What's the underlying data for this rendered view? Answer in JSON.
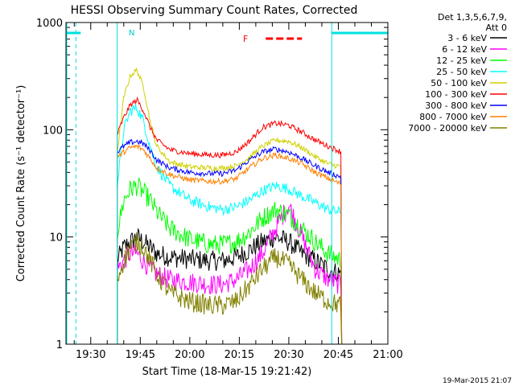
{
  "chart_data": {
    "type": "line",
    "title": "HESSI Observing Summary Count Rates, Corrected",
    "xlabel": "Start Time (18-Mar-15 19:21:42)",
    "ylabel": "Corrected Count Rate (s⁻¹ detector⁻¹)",
    "y_scale": "log",
    "ylim": [
      1,
      1000
    ],
    "xlim_minutes_after_1920": [
      2.5,
      100.0
    ],
    "x_tick_labels": [
      "19:30",
      "19:45",
      "20:00",
      "20:15",
      "20:30",
      "20:45",
      "21:00"
    ],
    "x_tick_minutes_after_1920": [
      10,
      25,
      40,
      55,
      70,
      85,
      100
    ],
    "y_tick_labels": [
      "1",
      "10",
      "100",
      "1000"
    ],
    "y_tick_values": [
      1,
      10,
      100,
      1000
    ],
    "legend_title_1": "Det 1,3,5,6,7,9,",
    "legend_title_2": "Att 0",
    "legend_placement": "right outside",
    "flags": {
      "n_label": "N",
      "f_label": "F",
      "attenuator_bar_color": "#00e0e0",
      "flare_bar_color": "#ff0000",
      "night_start_min": 5.5,
      "night_end_min": 18.0,
      "day_end_min": 83.0,
      "night2_start_min": 83.0,
      "night2_end_min": 100.0,
      "flare_start_min": 63.0,
      "flare_end_min": 74.0
    },
    "data_start_min": 18.0,
    "data_end_min": 86.0,
    "x_profile_min": [
      18,
      20,
      22,
      24,
      26,
      28,
      30,
      34,
      40,
      46,
      50,
      54,
      58,
      62,
      66,
      70,
      74,
      78,
      82,
      86
    ],
    "series": [
      {
        "name": "3 - 6 keV",
        "color": "#000000",
        "values": [
          6,
          8,
          9,
          10,
          9,
          8,
          7,
          6.5,
          6.2,
          6.0,
          6.0,
          6.5,
          7.5,
          9,
          10,
          9,
          7,
          6,
          5,
          4.5
        ]
      },
      {
        "name": "6 - 12 keV",
        "color": "#ff00ff",
        "values": [
          5,
          6,
          7,
          7,
          6,
          5,
          4.5,
          4,
          3.8,
          3.6,
          3.6,
          4,
          5,
          7,
          12,
          20,
          10,
          5,
          4,
          3.5
        ]
      },
      {
        "name": "12 - 25 keV",
        "color": "#00ff00",
        "values": [
          11,
          22,
          28,
          30,
          26,
          22,
          17,
          12,
          9.5,
          8.5,
          8.5,
          9,
          11,
          15,
          18,
          16,
          12,
          9,
          7,
          6
        ]
      },
      {
        "name": "25 - 50 keV",
        "color": "#00ffff",
        "values": [
          30,
          100,
          150,
          160,
          120,
          70,
          45,
          30,
          22,
          19,
          18,
          19,
          22,
          27,
          30,
          28,
          24,
          21,
          18,
          17
        ]
      },
      {
        "name": "50 - 100 keV",
        "color": "#d0d000",
        "values": [
          60,
          200,
          320,
          360,
          250,
          120,
          70,
          50,
          45,
          44,
          44,
          46,
          55,
          70,
          80,
          78,
          68,
          56,
          48,
          45
        ]
      },
      {
        "name": "100 - 300 keV",
        "color": "#ff0000",
        "values": [
          90,
          130,
          170,
          190,
          150,
          105,
          80,
          65,
          60,
          58,
          58,
          62,
          78,
          105,
          115,
          110,
          95,
          80,
          70,
          62
        ]
      },
      {
        "name": "300 - 800 keV",
        "color": "#0000ff",
        "values": [
          62,
          70,
          76,
          78,
          74,
          64,
          52,
          44,
          40,
          39,
          39,
          42,
          52,
          62,
          66,
          62,
          54,
          46,
          40,
          36
        ]
      },
      {
        "name": "800 - 7000 keV",
        "color": "#ff8000",
        "values": [
          55,
          62,
          68,
          70,
          65,
          54,
          44,
          38,
          34,
          33,
          33,
          35,
          44,
          54,
          58,
          54,
          48,
          40,
          35,
          31
        ]
      },
      {
        "name": "7000 - 20000 keV",
        "color": "#808000",
        "values": [
          4,
          6,
          8,
          9,
          8,
          6,
          4.5,
          3,
          2.5,
          2.3,
          2.3,
          2.5,
          3.5,
          5,
          6.5,
          5.5,
          4,
          3,
          2.5,
          2.3
        ]
      }
    ]
  },
  "footer": {
    "timestamp": "19-Mar-2015 21:07"
  }
}
